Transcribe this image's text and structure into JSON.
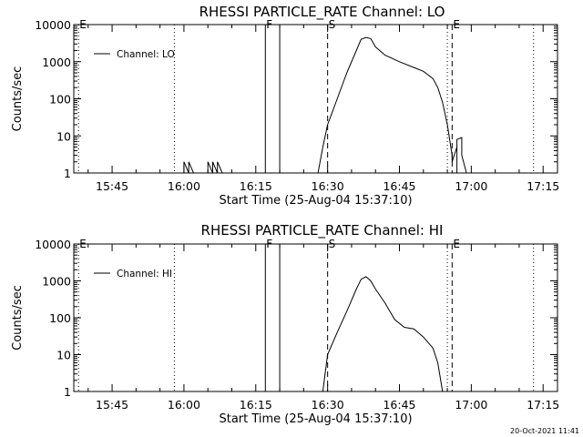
{
  "footer": {
    "timestamp": "20-Oct-2021 11:41"
  },
  "chart_data": [
    {
      "type": "line",
      "title": "RHESSI PARTICLE_RATE Channel: LO",
      "xlabel": "Start Time (25-Aug-04 15:37:10)",
      "ylabel": "Counts/sec",
      "yscale": "log",
      "ylim": [
        1,
        10000
      ],
      "xlim": [
        "15:37",
        "17:18"
      ],
      "xticks": [
        "15:45",
        "16:00",
        "16:15",
        "16:30",
        "16:45",
        "17:00",
        "17:15"
      ],
      "yticks": [
        "1",
        "10",
        "100",
        "1000",
        "10000"
      ],
      "legend": {
        "position": "top-left",
        "entries": [
          "Channel: LO"
        ]
      },
      "markers": [
        {
          "label": "E",
          "time": "15:38",
          "style": "dotted"
        },
        {
          "label": "",
          "time": "15:58",
          "style": "dotted"
        },
        {
          "label": "F",
          "time": "16:17",
          "style": "solid"
        },
        {
          "label": "",
          "time": "16:20",
          "style": "solid"
        },
        {
          "label": "S",
          "time": "16:30",
          "style": "dashed"
        },
        {
          "label": "",
          "time": "16:55",
          "style": "dotted"
        },
        {
          "label": "E",
          "time": "16:56",
          "style": "dashed"
        },
        {
          "label": "",
          "time": "17:13",
          "style": "dotted"
        }
      ],
      "series": [
        {
          "name": "Channel: LO",
          "x": [
            "16:00",
            "16:00",
            "16:01",
            "16:01",
            "16:02",
            "16:05",
            "16:05",
            "16:06",
            "16:06",
            "16:07",
            "16:07",
            "16:08",
            "16:08",
            "16:28",
            "16:29",
            "16:30",
            "16:32",
            "16:34",
            "16:36",
            "16:37",
            "16:38",
            "16:39",
            "16:40",
            "16:42",
            "16:45",
            "16:48",
            "16:50",
            "16:52",
            "16:53",
            "16:54",
            "16:55",
            "16:56",
            "16:56",
            "16:57",
            "16:57",
            "16:57",
            "16:58",
            "16:58",
            "16:59"
          ],
          "values": [
            1,
            2,
            1,
            2,
            1,
            1,
            2,
            1,
            2,
            1,
            2,
            1,
            1,
            1,
            5,
            20,
            100,
            500,
            2000,
            4000,
            4500,
            4200,
            2500,
            1500,
            1000,
            700,
            550,
            350,
            200,
            80,
            20,
            3,
            2,
            5,
            1,
            8,
            9,
            3,
            1
          ]
        }
      ]
    },
    {
      "type": "line",
      "title": "RHESSI PARTICLE_RATE Channel: HI",
      "xlabel": "Start Time (25-Aug-04 15:37:10)",
      "ylabel": "Counts/sec",
      "yscale": "log",
      "ylim": [
        1,
        10000
      ],
      "xlim": [
        "15:37",
        "17:18"
      ],
      "xticks": [
        "15:45",
        "16:00",
        "16:15",
        "16:30",
        "16:45",
        "17:00",
        "17:15"
      ],
      "yticks": [
        "1",
        "10",
        "100",
        "1000",
        "10000"
      ],
      "legend": {
        "position": "top-left",
        "entries": [
          "Channel: HI"
        ]
      },
      "markers": [
        {
          "label": "E",
          "time": "15:38",
          "style": "dotted"
        },
        {
          "label": "",
          "time": "15:58",
          "style": "dotted"
        },
        {
          "label": "F",
          "time": "16:17",
          "style": "solid"
        },
        {
          "label": "",
          "time": "16:20",
          "style": "solid"
        },
        {
          "label": "S",
          "time": "16:30",
          "style": "dashed"
        },
        {
          "label": "",
          "time": "16:55",
          "style": "dotted"
        },
        {
          "label": "E",
          "time": "16:56",
          "style": "dashed"
        },
        {
          "label": "",
          "time": "17:13",
          "style": "dotted"
        }
      ],
      "series": [
        {
          "name": "Channel: HI",
          "x": [
            "16:29",
            "16:30",
            "16:32",
            "16:34",
            "16:36",
            "16:37",
            "16:38",
            "16:39",
            "16:40",
            "16:42",
            "16:44",
            "16:46",
            "16:48",
            "16:50",
            "16:52",
            "16:53",
            "16:54"
          ],
          "values": [
            1,
            10,
            40,
            150,
            600,
            1100,
            1300,
            1000,
            600,
            250,
            90,
            55,
            50,
            30,
            15,
            6,
            1
          ]
        }
      ]
    }
  ]
}
